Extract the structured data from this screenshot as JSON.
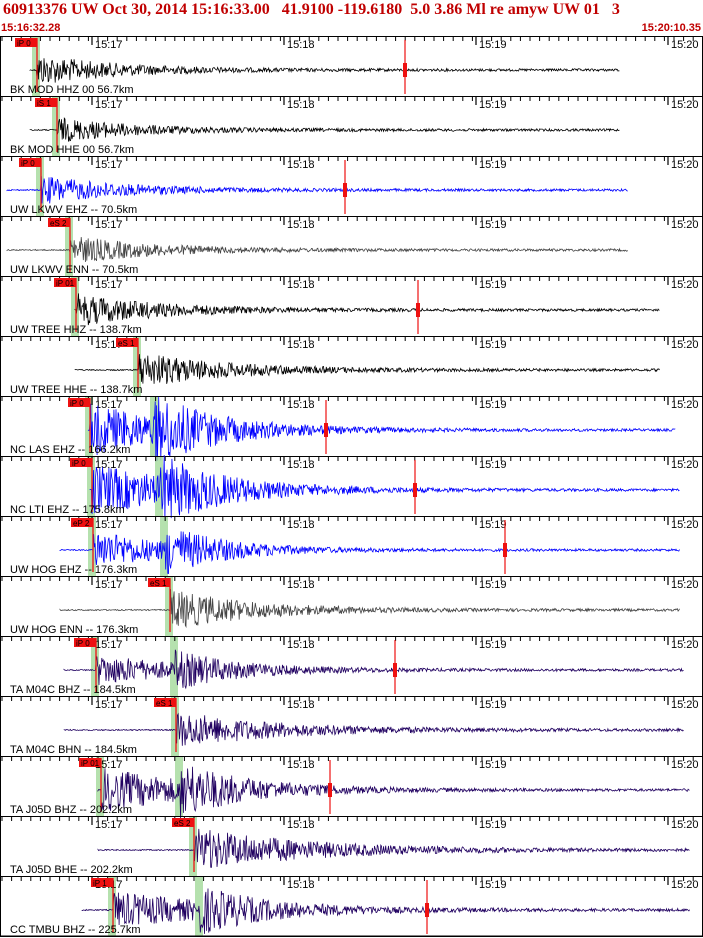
{
  "header": {
    "title": "60913376 UW Oct 30, 2014 15:16:33.00   41.9100 -119.6180  5.0 3.86 Ml re amyw UW 01   3",
    "start_time": "15:16:32.28",
    "end_time": "15:20:10.35"
  },
  "time_ticks": [
    "15:17",
    "15:18",
    "15:19",
    "15:20"
  ],
  "colors": {
    "header_text": "#c00000",
    "pick": "#ee1111",
    "pick_window": "#a8dca0",
    "channel_black": "#000000",
    "channel_blue": "#0000ff",
    "channel_gray": "#444444",
    "channel_navy": "#200060"
  },
  "channels": [
    {
      "label": "BK MOD HHZ 00 56.7km",
      "pick": "iP 0",
      "color": "#000000",
      "wave": [
        30,
        210,
        620
      ],
      "amp": 15,
      "p": 37,
      "s": 0,
      "tail": 0.2,
      "mark": 405
    },
    {
      "label": "BK MOD HHE 00 56.7km",
      "pick": "iS 1",
      "color": "#000000",
      "wave": [
        30,
        60,
        620
      ],
      "amp": 12,
      "p": 0,
      "s": 57,
      "tail": 0.2,
      "mark": 0
    },
    {
      "label": "UW LKWV EHZ -- 70.5km",
      "pick": "iP 0",
      "color": "#0000ff",
      "wave": [
        7,
        210,
        628
      ],
      "amp": 14,
      "p": 41,
      "s": 0,
      "tail": 0.2,
      "mark": 345
    },
    {
      "label": "UW LKWV ENN -- 70.5km",
      "pick": "eS 2",
      "color": "#444444",
      "wave": [
        7,
        70,
        628
      ],
      "amp": 14,
      "p": 0,
      "s": 70,
      "tail": 0.2,
      "mark": 0
    },
    {
      "label": "UW TREE HHZ -- 138.7km",
      "pick": "iP 01",
      "color": "#000000",
      "wave": [
        75,
        280,
        660
      ],
      "amp": 16,
      "p": 76,
      "s": 0,
      "tail": 0.25,
      "mark": 418
    },
    {
      "label": "UW TREE HHE -- 138.7km",
      "pick": "eS 1",
      "color": "#000000",
      "wave": [
        75,
        140,
        660
      ],
      "amp": 18,
      "p": 0,
      "s": 138,
      "tail": 0.25,
      "mark": 0
    },
    {
      "label": "NC LAS EHZ -- 166.2km",
      "pick": "iP 0",
      "color": "#0000ff",
      "wave": [
        88,
        330,
        676
      ],
      "amp": 26,
      "p": 90,
      "s": 155,
      "tail": 0.3,
      "mark": 326
    },
    {
      "label": "NC LTI EHZ -- 175.8km",
      "pick": "iP 0",
      "color": "#0000ff",
      "wave": [
        90,
        410,
        680
      ],
      "amp": 26,
      "p": 92,
      "s": 160,
      "tail": 0.35,
      "mark": 415
    },
    {
      "label": "UW HOG EHZ -- 176.3km",
      "pick": "eP 2",
      "color": "#0000ff",
      "wave": [
        60,
        505,
        680
      ],
      "amp": 20,
      "p": 93,
      "s": 165,
      "tail": 0.15,
      "mark": 505
    },
    {
      "label": "UW HOG ENN -- 176.3km",
      "pick": "eS 1",
      "color": "#444444",
      "wave": [
        60,
        170,
        680
      ],
      "amp": 20,
      "p": 0,
      "s": 170,
      "tail": 0.2,
      "mark": 0
    },
    {
      "label": "TA M04C BHZ -- 184.5km",
      "pick": "iP 0",
      "color": "#200060",
      "wave": [
        64,
        395,
        684
      ],
      "amp": 15,
      "p": 96,
      "s": 175,
      "tail": 0.3,
      "mark": 395
    },
    {
      "label": "TA M04C BHN -- 184.5km",
      "pick": "eS 1",
      "color": "#200060",
      "wave": [
        64,
        175,
        684
      ],
      "amp": 18,
      "p": 0,
      "s": 176,
      "tail": 0.35,
      "mark": 0
    },
    {
      "label": "TA J05D BHZ -- 202.2km",
      "pick": "iP 01",
      "color": "#200060",
      "wave": [
        98,
        330,
        690
      ],
      "amp": 22,
      "p": 101,
      "s": 180,
      "tail": 0.35,
      "mark": 330
    },
    {
      "label": "TA J05D BHE -- 202.2km",
      "pick": "eS 2",
      "color": "#200060",
      "wave": [
        98,
        195,
        690
      ],
      "amp": 22,
      "p": 0,
      "s": 194,
      "tail": 0.45,
      "mark": 0
    },
    {
      "label": "CC TMBU BHZ -- 225.7km",
      "pick": "iP 1",
      "color": "#200060",
      "wave": [
        82,
        427,
        690
      ],
      "amp": 18,
      "p": 113,
      "s": 200,
      "tail": 0.5,
      "mark": 427
    }
  ]
}
